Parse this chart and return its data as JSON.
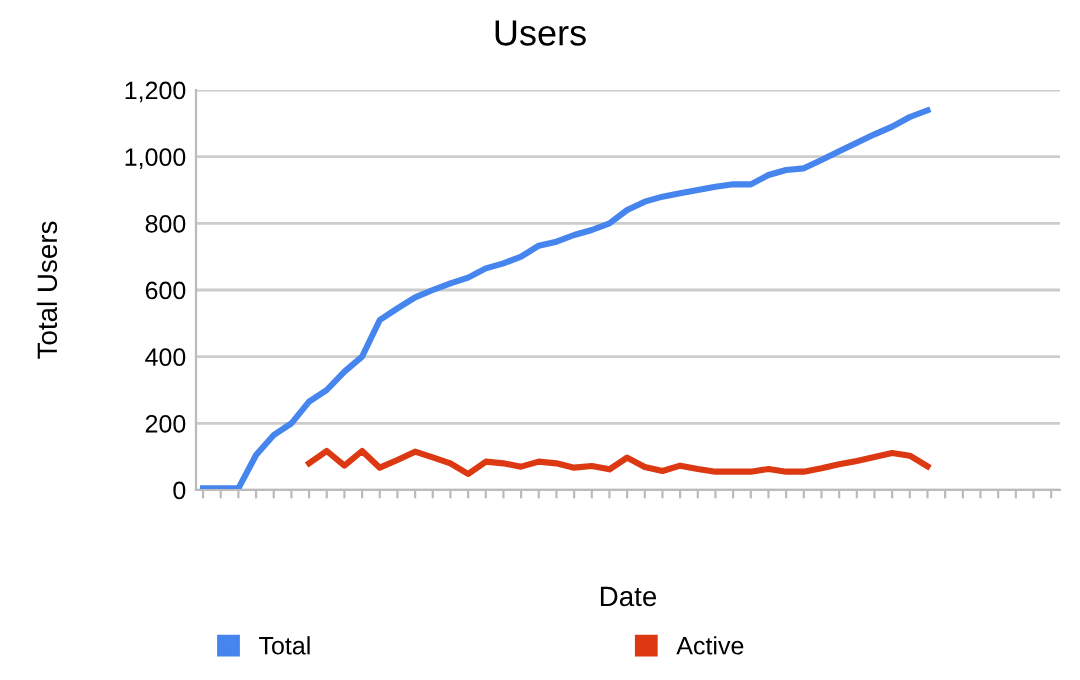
{
  "chart_data": {
    "type": "line",
    "title": "Users",
    "xlabel": "Date",
    "ylabel": "Total Users",
    "categories": [
      null,
      null,
      null,
      null,
      null,
      null,
      null,
      null,
      null,
      null,
      null,
      null,
      null,
      null,
      null,
      null,
      null,
      null,
      null,
      null,
      null,
      null,
      null,
      null,
      null,
      null,
      null,
      null,
      null,
      null,
      null,
      null,
      null,
      null,
      null,
      null,
      null,
      null,
      null,
      null,
      null,
      null,
      null,
      null,
      null,
      null,
      null,
      null,
      null
    ],
    "series": [
      {
        "name": "Total",
        "color": "#4684ee",
        "values": [
          5,
          5,
          5,
          105,
          165,
          200,
          265,
          300,
          355,
          400,
          510,
          545,
          578,
          600,
          620,
          637,
          665,
          680,
          700,
          733,
          745,
          765,
          780,
          800,
          840,
          865,
          880,
          890,
          900,
          910,
          917,
          917,
          945,
          960,
          965,
          990,
          1016,
          1042,
          1067,
          1090,
          1119,
          1139,
          null,
          null,
          null,
          null,
          null,
          null,
          null
        ]
      },
      {
        "name": "Active",
        "color": "#dc3912",
        "values": [
          null,
          null,
          null,
          null,
          null,
          null,
          80,
          117,
          73,
          117,
          67,
          90,
          115,
          98,
          80,
          48,
          85,
          80,
          70,
          85,
          80,
          67,
          72,
          62,
          97,
          69,
          57,
          73,
          63,
          55,
          55,
          55,
          63,
          55,
          55,
          65,
          77,
          87,
          99,
          111,
          103,
          71,
          null,
          null,
          null,
          null,
          null,
          null,
          null
        ]
      }
    ],
    "ylim": [
      0,
      1200
    ],
    "yticks": [
      0,
      {
        "value": 200,
        "label": "200"
      },
      {
        "value": 400,
        "label": "400"
      },
      {
        "value": 600,
        "label": "600"
      },
      {
        "value": 800,
        "label": "800"
      },
      {
        "value": 1000,
        "label": "1,000"
      },
      {
        "value": 1200,
        "label": "1,200"
      }
    ],
    "grid": "y",
    "legend": "bottom",
    "marker": "none",
    "line_style": "solid"
  }
}
